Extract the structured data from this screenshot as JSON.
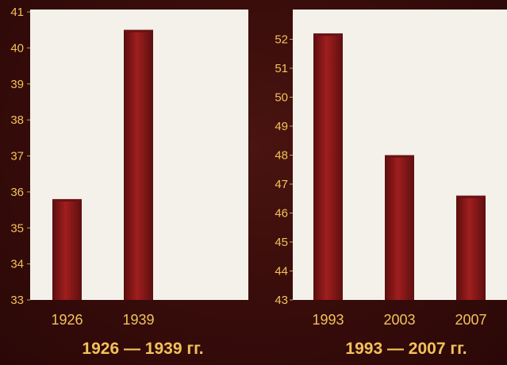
{
  "chart_data": [
    {
      "type": "bar",
      "title": "1926 — 1939 гг.",
      "categories": [
        "1926",
        "1939"
      ],
      "values": [
        35.8,
        40.5
      ],
      "ylim": [
        33,
        41
      ],
      "yticks": [
        "33",
        "34",
        "35",
        "36",
        "37",
        "38",
        "39",
        "40",
        "41"
      ],
      "xlabel": "",
      "ylabel": "",
      "grid": false,
      "legend": "none"
    },
    {
      "type": "bar",
      "title": "1993 — 2007 гг.",
      "categories": [
        "1993",
        "2003",
        "2007"
      ],
      "values": [
        52.2,
        48.0,
        46.6
      ],
      "ylim": [
        43,
        53
      ],
      "yticks": [
        "43",
        "44",
        "45",
        "46",
        "47",
        "48",
        "49",
        "50",
        "51",
        "52"
      ],
      "xlabel": "",
      "ylabel": "",
      "grid": false,
      "legend": "none"
    }
  ],
  "colors": {
    "background": "#3a0d0b",
    "panel": "#f3f1ea",
    "bar": "#8e1a1a",
    "bar_dark": "#5a0e0e",
    "text": "#f2c25a"
  }
}
